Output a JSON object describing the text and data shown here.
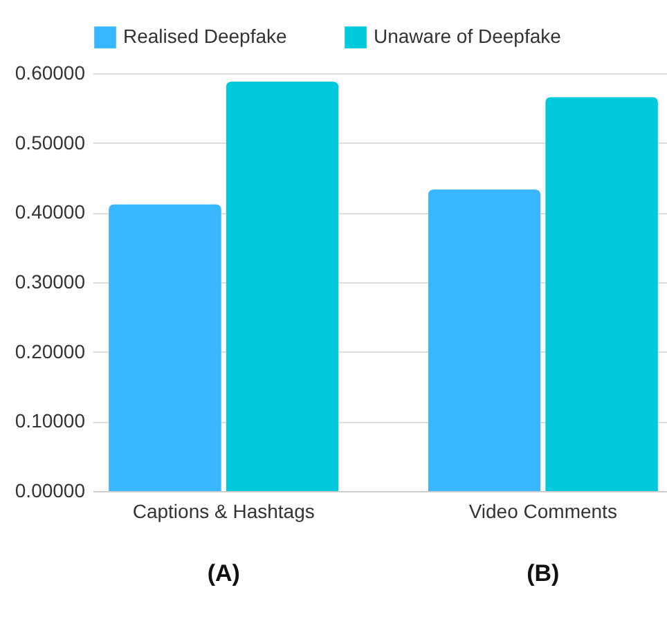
{
  "chart_data": {
    "type": "bar",
    "categories": [
      "Captions & Hashtags",
      "Video Comments"
    ],
    "series": [
      {
        "name": "Realised Deepfake",
        "color": "#38b6ff",
        "values": [
          0.412,
          0.433
        ]
      },
      {
        "name": "Unaware of Deepfake",
        "color": "#00c9db",
        "values": [
          0.588,
          0.566
        ]
      }
    ],
    "ylim": [
      0,
      0.6
    ],
    "yticks": [
      {
        "value": 0,
        "label": "0.00000"
      },
      {
        "value": 0.1,
        "label": "0.10000"
      },
      {
        "value": 0.2,
        "label": "0.20000"
      },
      {
        "value": 0.3,
        "label": "0.30000"
      },
      {
        "value": 0.4,
        "label": "0.40000"
      },
      {
        "value": 0.5,
        "label": "0.50000"
      },
      {
        "value": 0.6,
        "label": "0.60000"
      }
    ],
    "annotations": [
      "(A)",
      "(B)"
    ],
    "grid": "y",
    "legend": "top"
  }
}
